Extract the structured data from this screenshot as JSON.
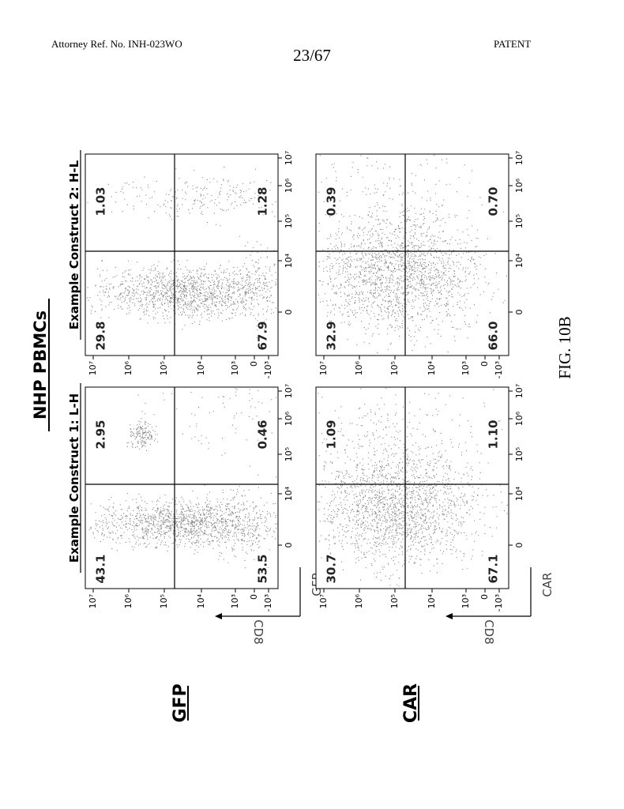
{
  "header": {
    "reference": "Attorney Ref. No. INH-023WO",
    "page": "23/67",
    "label": "PATENT"
  },
  "figure": {
    "title": "NHP PBMCs",
    "columns": [
      "Example Construct 1: L-H",
      "Example Construct 2: H-L"
    ],
    "y_ticks": [
      "10⁷",
      "10⁶",
      "10⁵",
      "10⁴",
      "10³",
      "0",
      "-10³"
    ],
    "x_ticks": [
      "0",
      "10⁴",
      "10⁵",
      "10⁶",
      "10⁷"
    ],
    "rows": [
      {
        "label": "GFP",
        "x_axis": "GFP",
        "y_axis": "CD8",
        "plots": [
          {
            "quadrants": [
              "43.1",
              "2.95",
              "53.5",
              "0.46"
            ]
          },
          {
            "quadrants": [
              "29.8",
              "1.03",
              "67.9",
              "1.28"
            ]
          }
        ]
      },
      {
        "label": "CAR",
        "x_axis": "CAR",
        "y_axis": "CD8",
        "plots": [
          {
            "quadrants": [
              "30.7",
              "1.09",
              "67.1",
              "1.10"
            ]
          },
          {
            "quadrants": [
              "32.9",
              "0.39",
              "66.0",
              "0.70"
            ]
          }
        ]
      }
    ],
    "caption": "FIG. 10B"
  }
}
